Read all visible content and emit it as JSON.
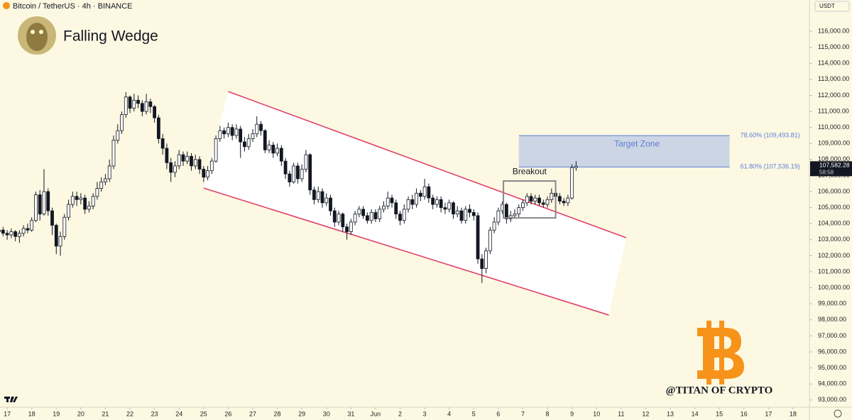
{
  "chart_data": {
    "type": "candlestick",
    "subtitle": "Bitcoin / TetherUS · 4h · BINANCE",
    "title": "Falling Wedge",
    "currency": "USDT",
    "watermark": "@TITAN OF CRYPTO",
    "up_color": "#ffffff",
    "down_color": "#131722",
    "xlim": [
      -7,
      784
    ],
    "ylim": [
      92550,
      117950
    ],
    "xticks": [
      {
        "value": 0,
        "label": "17"
      },
      {
        "value": 24,
        "label": "18"
      },
      {
        "value": 48,
        "label": "19"
      },
      {
        "value": 72,
        "label": "20"
      },
      {
        "value": 96,
        "label": "21"
      },
      {
        "value": 120,
        "label": "22"
      },
      {
        "value": 144,
        "label": "23"
      },
      {
        "value": 168,
        "label": "24"
      },
      {
        "value": 192,
        "label": "25"
      },
      {
        "value": 216,
        "label": "26"
      },
      {
        "value": 240,
        "label": "27"
      },
      {
        "value": 264,
        "label": "28"
      },
      {
        "value": 288,
        "label": "29"
      },
      {
        "value": 312,
        "label": "30"
      },
      {
        "value": 336,
        "label": "31"
      },
      {
        "value": 360,
        "label": "Jun"
      },
      {
        "value": 384,
        "label": "2"
      },
      {
        "value": 408,
        "label": "3"
      },
      {
        "value": 432,
        "label": "4"
      },
      {
        "value": 456,
        "label": "5"
      },
      {
        "value": 480,
        "label": "6"
      },
      {
        "value": 504,
        "label": "7"
      },
      {
        "value": 528,
        "label": "8"
      },
      {
        "value": 552,
        "label": "9"
      },
      {
        "value": 576,
        "label": "10"
      },
      {
        "value": 600,
        "label": "11"
      },
      {
        "value": 624,
        "label": "12"
      },
      {
        "value": 648,
        "label": "13"
      },
      {
        "value": 672,
        "label": "14"
      },
      {
        "value": 696,
        "label": "15"
      },
      {
        "value": 720,
        "label": "16"
      },
      {
        "value": 744,
        "label": "17"
      },
      {
        "value": 768,
        "label": "18"
      }
    ],
    "yticks": [
      {
        "value": 93000,
        "label": "93,000.00"
      },
      {
        "value": 94000,
        "label": "94,000.00"
      },
      {
        "value": 95000,
        "label": "95,000.00"
      },
      {
        "value": 96000,
        "label": "96,000.00"
      },
      {
        "value": 97000,
        "label": "97,000.00"
      },
      {
        "value": 98000,
        "label": "98,000.00"
      },
      {
        "value": 99000,
        "label": "99,000.00"
      },
      {
        "value": 100000,
        "label": "100,000.00"
      },
      {
        "value": 101000,
        "label": "101,000.00"
      },
      {
        "value": 102000,
        "label": "102,000.00"
      },
      {
        "value": 103000,
        "label": "103,000.00"
      },
      {
        "value": 104000,
        "label": "104,000.00"
      },
      {
        "value": 105000,
        "label": "105,000.00"
      },
      {
        "value": 106000,
        "label": "106,000.00"
      },
      {
        "value": 107000,
        "label": "107,000.00"
      },
      {
        "value": 108000,
        "label": "108,000.00"
      },
      {
        "value": 109000,
        "label": "109,000.00"
      },
      {
        "value": 110000,
        "label": "110,000.00"
      },
      {
        "value": 111000,
        "label": "111,000.00"
      },
      {
        "value": 112000,
        "label": "112,000.00"
      },
      {
        "value": 113000,
        "label": "113,000.00"
      },
      {
        "value": 114000,
        "label": "114,000.00"
      },
      {
        "value": 115000,
        "label": "115,000.00"
      },
      {
        "value": 116000,
        "label": "116,000.00"
      }
    ],
    "last_price": {
      "value": 107582.28,
      "label": "107,582.28"
    },
    "countdown": "58:58",
    "candles": [
      [
        -8,
        103500,
        103800,
        103300,
        103600
      ],
      [
        -4,
        103600,
        103800,
        103200,
        103400
      ],
      [
        0,
        103400,
        103600,
        103000,
        103300
      ],
      [
        4,
        103300,
        103700,
        103100,
        103500
      ],
      [
        8,
        103500,
        103600,
        102900,
        103200
      ],
      [
        12,
        103200,
        103600,
        102800,
        103400
      ],
      [
        16,
        103400,
        103900,
        103200,
        103700
      ],
      [
        20,
        103700,
        104000,
        103400,
        103600
      ],
      [
        24,
        103600,
        104400,
        103500,
        104200
      ],
      [
        28,
        104200,
        106000,
        104100,
        105800
      ],
      [
        32,
        105800,
        106100,
        104200,
        104600
      ],
      [
        36,
        104600,
        107400,
        104500,
        106000
      ],
      [
        40,
        106000,
        106200,
        104500,
        104800
      ],
      [
        44,
        104800,
        105000,
        103300,
        103900
      ],
      [
        48,
        103900,
        104000,
        102100,
        102600
      ],
      [
        52,
        102600,
        103500,
        102000,
        103200
      ],
      [
        56,
        103200,
        104600,
        103000,
        104400
      ],
      [
        60,
        104400,
        105500,
        104200,
        105200
      ],
      [
        64,
        105200,
        106000,
        105000,
        105700
      ],
      [
        68,
        105700,
        106000,
        105100,
        105500
      ],
      [
        72,
        105500,
        105900,
        105200,
        105600
      ],
      [
        76,
        105600,
        105800,
        104600,
        104900
      ],
      [
        80,
        104900,
        105400,
        104700,
        105100
      ],
      [
        84,
        105100,
        105900,
        104900,
        105700
      ],
      [
        88,
        105700,
        106600,
        105500,
        106200
      ],
      [
        92,
        106200,
        106900,
        106000,
        106600
      ],
      [
        96,
        106600,
        107100,
        106400,
        106800
      ],
      [
        100,
        106800,
        108000,
        106600,
        107600
      ],
      [
        104,
        107600,
        109500,
        107400,
        109200
      ],
      [
        108,
        109200,
        110200,
        109000,
        109800
      ],
      [
        112,
        109800,
        111000,
        109600,
        110800
      ],
      [
        116,
        110800,
        112200,
        110600,
        111900
      ],
      [
        120,
        111900,
        112000,
        110900,
        111200
      ],
      [
        124,
        111200,
        112100,
        111000,
        111700
      ],
      [
        128,
        111700,
        112000,
        111200,
        111500
      ],
      [
        132,
        111500,
        111700,
        110700,
        111000
      ],
      [
        136,
        111000,
        112100,
        110800,
        111600
      ],
      [
        140,
        111600,
        111800,
        110900,
        111300
      ],
      [
        144,
        111300,
        111400,
        110300,
        110600
      ],
      [
        148,
        110600,
        110800,
        109000,
        109300
      ],
      [
        152,
        109300,
        109600,
        108300,
        108700
      ],
      [
        156,
        108700,
        109000,
        107400,
        107800
      ],
      [
        160,
        107800,
        108100,
        106600,
        107200
      ],
      [
        164,
        107200,
        107900,
        106900,
        107600
      ],
      [
        168,
        107600,
        108600,
        107400,
        108300
      ],
      [
        172,
        108300,
        108500,
        107600,
        107900
      ],
      [
        176,
        107900,
        108500,
        107700,
        108200
      ],
      [
        180,
        108200,
        108400,
        107300,
        107600
      ],
      [
        184,
        107600,
        108300,
        107400,
        108000
      ],
      [
        188,
        108000,
        108200,
        107100,
        107400
      ],
      [
        192,
        107400,
        107600,
        106600,
        106900
      ],
      [
        196,
        106900,
        107600,
        106700,
        107300
      ],
      [
        200,
        107300,
        108100,
        107100,
        107900
      ],
      [
        204,
        107900,
        109500,
        107800,
        109300
      ],
      [
        208,
        109300,
        110100,
        109100,
        109800
      ],
      [
        212,
        109800,
        110000,
        109300,
        109600
      ],
      [
        216,
        109600,
        110300,
        109400,
        110000
      ],
      [
        220,
        110000,
        110200,
        109200,
        109500
      ],
      [
        224,
        109500,
        110200,
        109300,
        109900
      ],
      [
        228,
        109900,
        110100,
        108100,
        109100
      ],
      [
        232,
        109100,
        109400,
        108500,
        108800
      ],
      [
        236,
        108800,
        109600,
        108600,
        109300
      ],
      [
        240,
        109300,
        109900,
        109100,
        109600
      ],
      [
        244,
        109600,
        110700,
        109400,
        110200
      ],
      [
        248,
        110200,
        110400,
        109500,
        109800
      ],
      [
        252,
        109800,
        109900,
        108400,
        108600
      ],
      [
        256,
        108600,
        109200,
        108400,
        108900
      ],
      [
        260,
        108900,
        109100,
        108100,
        108400
      ],
      [
        264,
        108400,
        109000,
        108200,
        108700
      ],
      [
        268,
        108700,
        108900,
        107600,
        107900
      ],
      [
        272,
        107900,
        108100,
        106800,
        107100
      ],
      [
        276,
        107100,
        107300,
        106300,
        106600
      ],
      [
        280,
        106600,
        107800,
        106500,
        107600
      ],
      [
        284,
        107600,
        107800,
        106500,
        106800
      ],
      [
        288,
        106800,
        107700,
        106600,
        107400
      ],
      [
        292,
        107400,
        108600,
        107200,
        108300
      ],
      [
        296,
        108300,
        108400,
        105800,
        106100
      ],
      [
        300,
        106100,
        106300,
        105200,
        105500
      ],
      [
        304,
        105500,
        106300,
        105300,
        106000
      ],
      [
        308,
        106000,
        106200,
        105000,
        105300
      ],
      [
        312,
        105300,
        105900,
        105100,
        105600
      ],
      [
        316,
        105600,
        105800,
        104500,
        104800
      ],
      [
        320,
        104800,
        105000,
        103800,
        104100
      ],
      [
        324,
        104100,
        104800,
        103900,
        104600
      ],
      [
        328,
        104600,
        104700,
        103500,
        103800
      ],
      [
        332,
        103800,
        104000,
        103000,
        103500
      ],
      [
        336,
        103500,
        104300,
        103300,
        104100
      ],
      [
        340,
        104100,
        104800,
        103900,
        104600
      ],
      [
        344,
        104600,
        105100,
        104400,
        104900
      ],
      [
        348,
        104900,
        105100,
        104300,
        104500
      ],
      [
        352,
        104500,
        104700,
        104000,
        104200
      ],
      [
        356,
        104200,
        104900,
        104000,
        104700
      ],
      [
        360,
        104700,
        104900,
        104100,
        104300
      ],
      [
        364,
        104300,
        105100,
        104100,
        104900
      ],
      [
        368,
        104900,
        105400,
        104700,
        105100
      ],
      [
        372,
        105100,
        106000,
        104900,
        105600
      ],
      [
        376,
        105600,
        105800,
        105000,
        105300
      ],
      [
        380,
        105300,
        105500,
        104300,
        104600
      ],
      [
        384,
        104600,
        104800,
        103900,
        104200
      ],
      [
        388,
        104200,
        105200,
        104000,
        104900
      ],
      [
        392,
        104900,
        105700,
        104700,
        105500
      ],
      [
        396,
        105500,
        105800,
        104900,
        105200
      ],
      [
        400,
        105200,
        106200,
        105000,
        105900
      ],
      [
        404,
        105900,
        106100,
        105400,
        105700
      ],
      [
        408,
        105700,
        106800,
        105500,
        106300
      ],
      [
        412,
        106300,
        106500,
        105300,
        105600
      ],
      [
        416,
        105600,
        105800,
        104900,
        105200
      ],
      [
        420,
        105200,
        105700,
        105000,
        105500
      ],
      [
        424,
        105500,
        105700,
        104700,
        105000
      ],
      [
        428,
        105000,
        105300,
        104600,
        104900
      ],
      [
        432,
        104900,
        105500,
        104700,
        105300
      ],
      [
        436,
        105300,
        105400,
        104300,
        104600
      ],
      [
        440,
        104600,
        105100,
        104400,
        104800
      ],
      [
        444,
        104800,
        105000,
        104000,
        104200
      ],
      [
        448,
        104200,
        105100,
        104000,
        104900
      ],
      [
        452,
        104900,
        105200,
        104400,
        104700
      ],
      [
        456,
        104700,
        104900,
        104200,
        104500
      ],
      [
        460,
        104500,
        104700,
        101500,
        101800
      ],
      [
        464,
        101800,
        102100,
        100300,
        101200
      ],
      [
        468,
        101200,
        102500,
        100900,
        102300
      ],
      [
        472,
        102300,
        103800,
        102100,
        103600
      ],
      [
        476,
        103600,
        104400,
        103400,
        104100
      ],
      [
        480,
        104100,
        105000,
        103900,
        104800
      ],
      [
        484,
        104800,
        105400,
        104600,
        105200
      ],
      [
        488,
        105200,
        105300,
        104000,
        104300
      ],
      [
        492,
        104300,
        104800,
        104100,
        104500
      ],
      [
        496,
        104500,
        104900,
        104300,
        104600
      ],
      [
        500,
        104600,
        105200,
        104400,
        105000
      ],
      [
        504,
        105000,
        105500,
        104800,
        105300
      ],
      [
        508,
        105300,
        105900,
        105100,
        105700
      ],
      [
        512,
        105700,
        105900,
        105200,
        105400
      ],
      [
        516,
        105400,
        105800,
        105200,
        105600
      ],
      [
        520,
        105600,
        105800,
        105100,
        105300
      ],
      [
        524,
        105300,
        105500,
        105000,
        105200
      ],
      [
        528,
        105200,
        105700,
        105000,
        105500
      ],
      [
        532,
        105500,
        106200,
        105300,
        105900
      ],
      [
        536,
        105900,
        106100,
        105500,
        105700
      ],
      [
        540,
        105700,
        105900,
        105200,
        105400
      ],
      [
        544,
        105400,
        105600,
        105100,
        105300
      ],
      [
        548,
        105300,
        105800,
        105100,
        105600
      ],
      [
        552,
        105600,
        107700,
        105500,
        107500
      ],
      [
        556,
        107500,
        107900,
        107300,
        107582.28
      ]
    ],
    "wedge": {
      "color": "#e0416b",
      "upper": {
        "x": [
          216,
          605
        ],
        "y": [
          112240,
          103120
        ]
      },
      "lower": {
        "x": [
          192,
          588
        ],
        "y": [
          106220,
          98300
        ]
      }
    },
    "target_zone": {
      "label": "Target Zone",
      "color": "#5b7fd6",
      "x": [
        500,
        706
      ],
      "levels": [
        {
          "value": 109493.81,
          "label": "78.60% (109,493.81)"
        },
        {
          "value": 107536.19,
          "label": "61.80% (107,536.19)"
        }
      ]
    },
    "breakout": {
      "label": "Breakout",
      "x": [
        485,
        536
      ],
      "y": [
        104360,
        106660
      ]
    }
  }
}
